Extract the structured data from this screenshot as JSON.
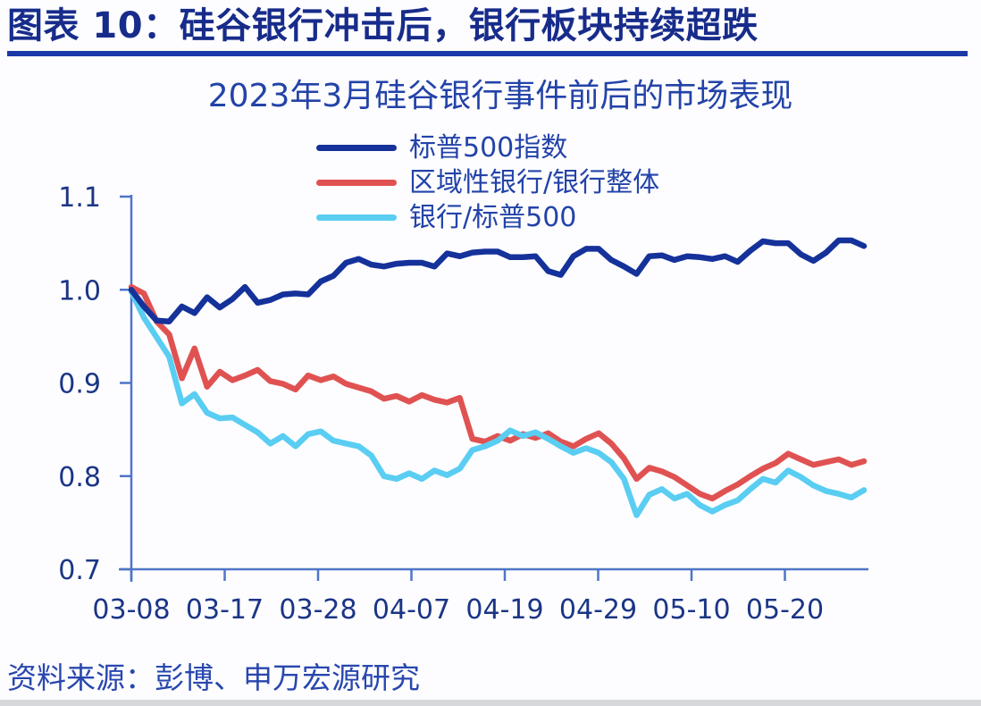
{
  "header": {
    "title": "图表 10：硅谷银行冲击后，银行板块持续超跌"
  },
  "source": {
    "label": "资料来源：彭博、申万宏源研究"
  },
  "colors": {
    "header_text": "#172c8a",
    "underline": "#1a39a8",
    "title_text": "#2343a8",
    "legend_text": "#2343a8",
    "source_text": "#2847ae",
    "axis": "#4e75c8",
    "tick_label": "#1b3586",
    "background": "#fdfdff",
    "bottom_bar": "#d6d8dc"
  },
  "chart_data": {
    "type": "line",
    "title": "2023年3月硅谷银行事件前后的市场表现",
    "xlabel": "",
    "ylabel": "",
    "ylim": [
      0.7,
      1.1
    ],
    "y_ticks": [
      1.1,
      1.0,
      0.9,
      0.8,
      0.7
    ],
    "x_tick_labels": [
      "03-08",
      "03-17",
      "03-28",
      "04-07",
      "04-19",
      "04-29",
      "05-10",
      "05-20"
    ],
    "grid": false,
    "legend_position": "top",
    "x": [
      "03-08",
      "03-09",
      "03-10",
      "03-13",
      "03-14",
      "03-15",
      "03-16",
      "03-17",
      "03-20",
      "03-21",
      "03-22",
      "03-23",
      "03-24",
      "03-27",
      "03-28",
      "03-29",
      "03-30",
      "03-31",
      "04-03",
      "04-04",
      "04-05",
      "04-06",
      "04-10",
      "04-11",
      "04-12",
      "04-13",
      "04-14",
      "04-17",
      "04-18",
      "04-19",
      "04-20",
      "04-21",
      "04-24",
      "04-25",
      "04-26",
      "04-27",
      "04-28",
      "05-01",
      "05-02",
      "05-03",
      "05-04",
      "05-05",
      "05-08",
      "05-09",
      "05-10",
      "05-11",
      "05-12",
      "05-15",
      "05-16",
      "05-17",
      "05-18",
      "05-19",
      "05-22",
      "05-23",
      "05-24",
      "05-25",
      "05-26",
      "05-30",
      "05-31"
    ],
    "series": [
      {
        "name": "标普500指数",
        "color": "#15319a",
        "values": [
          1.0,
          0.982,
          0.967,
          0.966,
          0.982,
          0.975,
          0.992,
          0.981,
          0.99,
          1.003,
          0.986,
          0.989,
          0.995,
          0.996,
          0.995,
          1.009,
          1.015,
          1.029,
          1.033,
          1.027,
          1.025,
          1.028,
          1.029,
          1.029,
          1.025,
          1.039,
          1.036,
          1.04,
          1.041,
          1.041,
          1.035,
          1.035,
          1.036,
          1.02,
          1.016,
          1.036,
          1.044,
          1.044,
          1.032,
          1.025,
          1.017,
          1.036,
          1.037,
          1.032,
          1.036,
          1.035,
          1.033,
          1.036,
          1.03,
          1.042,
          1.052,
          1.05,
          1.05,
          1.038,
          1.031,
          1.04,
          1.053,
          1.053,
          1.047
        ]
      },
      {
        "name": "区域性银行/银行整体",
        "color": "#e05252",
        "values": [
          1.003,
          0.996,
          0.966,
          0.952,
          0.905,
          0.937,
          0.896,
          0.912,
          0.903,
          0.908,
          0.914,
          0.902,
          0.899,
          0.893,
          0.908,
          0.903,
          0.907,
          0.899,
          0.895,
          0.891,
          0.883,
          0.886,
          0.88,
          0.887,
          0.882,
          0.879,
          0.884,
          0.84,
          0.837,
          0.843,
          0.838,
          0.845,
          0.841,
          0.846,
          0.837,
          0.832,
          0.84,
          0.846,
          0.835,
          0.819,
          0.797,
          0.809,
          0.805,
          0.799,
          0.79,
          0.781,
          0.776,
          0.784,
          0.791,
          0.8,
          0.808,
          0.814,
          0.824,
          0.818,
          0.812,
          0.815,
          0.818,
          0.812,
          0.816
        ]
      },
      {
        "name": "银行/标普500",
        "color": "#5acdf2",
        "values": [
          0.998,
          0.97,
          0.949,
          0.928,
          0.878,
          0.888,
          0.868,
          0.862,
          0.863,
          0.855,
          0.847,
          0.835,
          0.843,
          0.832,
          0.845,
          0.848,
          0.838,
          0.835,
          0.832,
          0.822,
          0.8,
          0.797,
          0.803,
          0.797,
          0.806,
          0.801,
          0.808,
          0.828,
          0.832,
          0.838,
          0.849,
          0.843,
          0.847,
          0.84,
          0.832,
          0.825,
          0.83,
          0.825,
          0.815,
          0.797,
          0.758,
          0.78,
          0.786,
          0.776,
          0.781,
          0.769,
          0.762,
          0.769,
          0.774,
          0.786,
          0.797,
          0.793,
          0.806,
          0.799,
          0.79,
          0.784,
          0.781,
          0.777,
          0.785
        ]
      }
    ]
  }
}
